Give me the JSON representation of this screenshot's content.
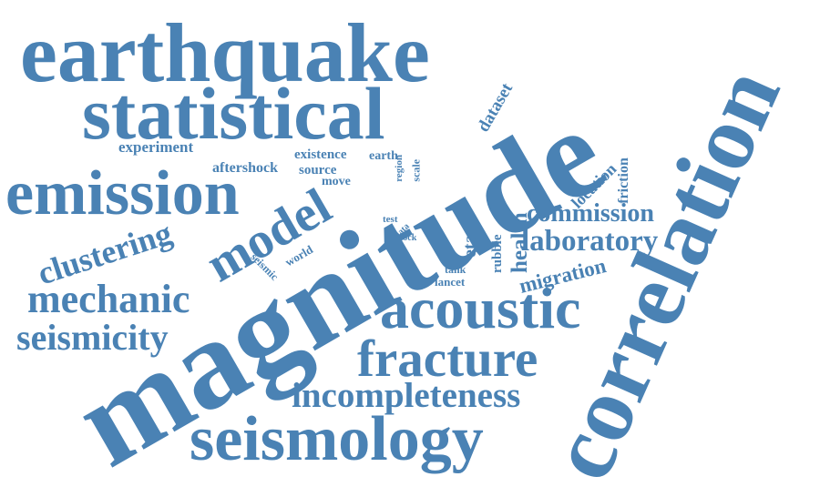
{
  "theme": {
    "word_color": "#4A82B4",
    "background": "#FFFFFF"
  },
  "words": [
    {
      "key": "magnitude",
      "text": "magnitude",
      "orientation": "diagonal-up"
    },
    {
      "key": "correlation",
      "text": "correlation",
      "orientation": "diagonal-up"
    },
    {
      "key": "earthquake",
      "text": "earthquake",
      "orientation": "horizontal"
    },
    {
      "key": "statistical",
      "text": "statistical",
      "orientation": "horizontal"
    },
    {
      "key": "emission",
      "text": "emission",
      "orientation": "horizontal"
    },
    {
      "key": "seismology",
      "text": "seismology",
      "orientation": "horizontal"
    },
    {
      "key": "acoustic",
      "text": "acoustic",
      "orientation": "horizontal"
    },
    {
      "key": "fracture",
      "text": "fracture",
      "orientation": "horizontal"
    },
    {
      "key": "model",
      "text": "model",
      "orientation": "diagonal-up"
    },
    {
      "key": "mechanic",
      "text": "mechanic",
      "orientation": "horizontal"
    },
    {
      "key": "seismicity",
      "text": "seismicity",
      "orientation": "horizontal"
    },
    {
      "key": "clustering",
      "text": "clustering",
      "orientation": "diagonal-up"
    },
    {
      "key": "incompleteness",
      "text": "incompleteness",
      "orientation": "horizontal"
    },
    {
      "key": "laboratory",
      "text": "laboratory",
      "orientation": "horizontal"
    },
    {
      "key": "commission",
      "text": "commission",
      "orientation": "horizontal"
    },
    {
      "key": "health",
      "text": "health",
      "orientation": "vertical-up"
    },
    {
      "key": "migration",
      "text": "migration",
      "orientation": "diagonal-up"
    },
    {
      "key": "eta",
      "text": "eta",
      "orientation": "vertical-up"
    },
    {
      "key": "rubble",
      "text": "rubble",
      "orientation": "vertical-up"
    },
    {
      "key": "dataset",
      "text": "dataset",
      "orientation": "diagonal-up"
    },
    {
      "key": "location",
      "text": "location",
      "orientation": "diagonal-up"
    },
    {
      "key": "friction",
      "text": "friction",
      "orientation": "vertical-up"
    },
    {
      "key": "experiment",
      "text": "experiment",
      "orientation": "horizontal"
    },
    {
      "key": "aftershock",
      "text": "aftershock",
      "orientation": "horizontal"
    },
    {
      "key": "existence",
      "text": "existence",
      "orientation": "horizontal"
    },
    {
      "key": "source",
      "text": "source",
      "orientation": "horizontal"
    },
    {
      "key": "move",
      "text": "move",
      "orientation": "horizontal"
    },
    {
      "key": "earth",
      "text": "earth",
      "orientation": "horizontal"
    },
    {
      "key": "region",
      "text": "region",
      "orientation": "vertical-up"
    },
    {
      "key": "scale",
      "text": "scale",
      "orientation": "vertical-up"
    },
    {
      "key": "test",
      "text": "test",
      "orientation": "horizontal"
    },
    {
      "key": "data",
      "text": "data",
      "orientation": "diagonal-up"
    },
    {
      "key": "rock",
      "text": "rock",
      "orientation": "horizontal"
    },
    {
      "key": "world",
      "text": "world",
      "orientation": "diagonal-up"
    },
    {
      "key": "seismic",
      "text": "seismic",
      "orientation": "diagonal-down"
    },
    {
      "key": "tank",
      "text": "tank",
      "orientation": "horizontal"
    },
    {
      "key": "lancet",
      "text": "lancet",
      "orientation": "horizontal"
    }
  ]
}
